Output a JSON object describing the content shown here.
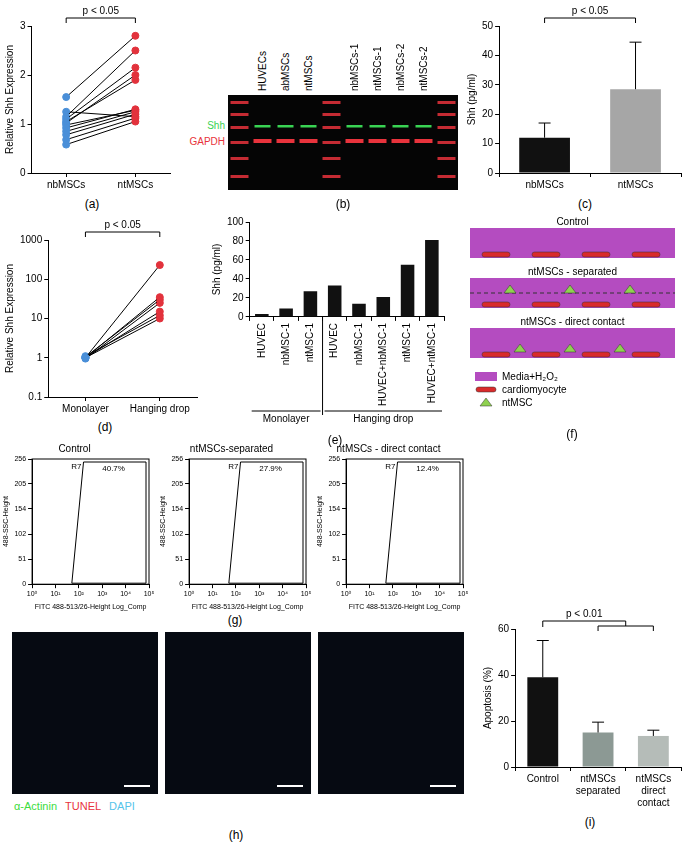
{
  "chart_data": [
    {
      "type": "line",
      "subtitle": "(a)",
      "categories": [
        "nbMSCs",
        "ntMSCs"
      ],
      "y_label": "Relative Shh Expression",
      "ylim": [
        0,
        3
      ],
      "yticks": [
        0,
        1,
        2,
        3
      ],
      "grid": false,
      "marker": "circle",
      "colors": [
        "#4a8fd8",
        "#e2323c"
      ],
      "annotations": [
        "p < 0.05"
      ],
      "series": [
        {
          "values": [
            0.58,
            1.05
          ]
        },
        {
          "values": [
            0.68,
            1.12
          ]
        },
        {
          "values": [
            0.78,
            1.2
          ]
        },
        {
          "values": [
            0.85,
            1.25
          ]
        },
        {
          "values": [
            0.92,
            1.3
          ]
        },
        {
          "values": [
            0.98,
            1.28
          ]
        },
        {
          "values": [
            1.02,
            2.0
          ]
        },
        {
          "values": [
            1.05,
            1.9
          ]
        },
        {
          "values": [
            1.1,
            2.15
          ]
        },
        {
          "values": [
            1.15,
            2.5
          ]
        },
        {
          "values": [
            1.25,
            1.15
          ]
        },
        {
          "values": [
            1.55,
            2.8
          ]
        }
      ]
    },
    {
      "type": "bar",
      "subtitle": "(c)",
      "categories": [
        "nbMSCs",
        "ntMSCs"
      ],
      "values": [
        12,
        28.5
      ],
      "errors": [
        5,
        16
      ],
      "colors": [
        "#111111",
        "#a6a6a6"
      ],
      "y_label": "Shh (pg/ml)",
      "ylim": [
        0,
        50
      ],
      "yticks": [
        0,
        10,
        20,
        30,
        40,
        50
      ],
      "grid": false,
      "annotations": [
        "p < 0.05"
      ]
    },
    {
      "type": "line",
      "subtitle": "(d)",
      "categories": [
        "Monolayer",
        "Hanging drop"
      ],
      "log": "y",
      "y_label": "Relative Shh Expression",
      "ylim": [
        0.1,
        1000
      ],
      "yticks": [
        0.1,
        1,
        10,
        100,
        1000
      ],
      "grid": false,
      "marker": "circle",
      "colors": [
        "#4a8fd8",
        "#e2323c"
      ],
      "annotations": [
        "p < 0.05"
      ],
      "series": [
        {
          "values": [
            1,
            230
          ]
        },
        {
          "values": [
            1,
            35
          ]
        },
        {
          "values": [
            1.05,
            30
          ]
        },
        {
          "values": [
            0.95,
            25
          ]
        },
        {
          "values": [
            1,
            15
          ]
        },
        {
          "values": [
            1.1,
            12
          ]
        },
        {
          "values": [
            1,
            10
          ]
        }
      ]
    },
    {
      "type": "bar",
      "subtitle": "(e)",
      "categories": [
        "HUVEC",
        "nbMSC-1",
        "ntMSC-1",
        "HUVEC",
        "nbMSC-1",
        "HUVEC+nbMSC-1",
        "ntMSC-1",
        "HUVEC+ntMSC-1"
      ],
      "group_labels": [
        "Monolayer",
        "Monolayer",
        "Monolayer",
        "Hanging drop",
        "Hanging drop",
        "Hanging drop",
        "Hanging drop",
        "Hanging drop"
      ],
      "values": [
        3,
        9,
        27,
        33,
        14,
        21,
        55,
        81
      ],
      "color": "#111111",
      "y_label": "Shh (pg/ml)",
      "ylim": [
        0,
        100
      ],
      "yticks": [
        0,
        20,
        40,
        60,
        80,
        100
      ],
      "grid": false
    },
    {
      "type": "bar",
      "subtitle": "(i)",
      "categories": [
        "Control",
        "ntMSCs separated",
        "ntMSCs direct contact"
      ],
      "values": [
        39,
        15,
        13.5
      ],
      "errors": [
        16,
        4.5,
        2.5
      ],
      "colors": [
        "#111111",
        "#8c9994",
        "#b5bcb8"
      ],
      "y_label": "Apoptosis (%)",
      "ylim": [
        0,
        60
      ],
      "yticks": [
        0,
        20,
        40,
        60
      ],
      "grid": false,
      "annotations": [
        "p < 0.01"
      ]
    }
  ],
  "blot": {
    "subtitle": "(b)",
    "lanes": [
      null,
      "HUVECs",
      "abMSCs",
      "ntMSCs",
      null,
      "nbMSCs-1",
      "ntMSCs-1",
      "nbMSCs-2",
      "ntMSCs-2",
      null
    ],
    "bands": [
      {
        "label": "Shh",
        "color": "#39d353"
      },
      {
        "label": "GAPDH",
        "color": "#e8333c"
      }
    ]
  },
  "schematic": {
    "subtitle": "(f)",
    "conditions": [
      "Control",
      "ntMSCs - separated",
      "ntMSCs - direct contact"
    ],
    "legend": [
      {
        "label": "Media+H₂O₂",
        "color": "#b44cc0"
      },
      {
        "label": "cardiomyocyte",
        "color": "#d92b2b"
      },
      {
        "label": "ntMSC",
        "color": "#8fd14f"
      }
    ]
  },
  "flow": {
    "subtitle": "(g)",
    "x_label": "FITC 488-513/26-Height Log_Comp",
    "y_label": "488-SSC-Height",
    "log": "x",
    "xlim": [
      1,
      100000
    ],
    "xticks": [
      {
        "value": 1,
        "label": "10⁰"
      },
      {
        "value": 10,
        "label": "10¹"
      },
      {
        "value": 100,
        "label": "10²"
      },
      {
        "value": 1000,
        "label": "10³"
      },
      {
        "value": 10000,
        "label": "10⁴"
      },
      {
        "value": 100000,
        "label": "10⁵"
      }
    ],
    "ylim": [
      0,
      256
    ],
    "yticks": [
      0,
      51,
      102,
      154,
      205,
      256
    ],
    "gate": "R7",
    "plots": [
      {
        "title": "Control",
        "annotation": "40.7%"
      },
      {
        "title": "ntMSCs-separated",
        "annotation": "27.9%"
      },
      {
        "title": "ntMSCs - direct contact",
        "annotation": "12.4%"
      }
    ]
  },
  "micrographs": {
    "subtitle": "(h)",
    "stains": [
      {
        "label": "α-Actinin",
        "color": "#3ddc3d"
      },
      {
        "label": "TUNEL",
        "color": "#e8333c"
      },
      {
        "label": "DAPI",
        "color": "#55c3ea"
      }
    ]
  }
}
